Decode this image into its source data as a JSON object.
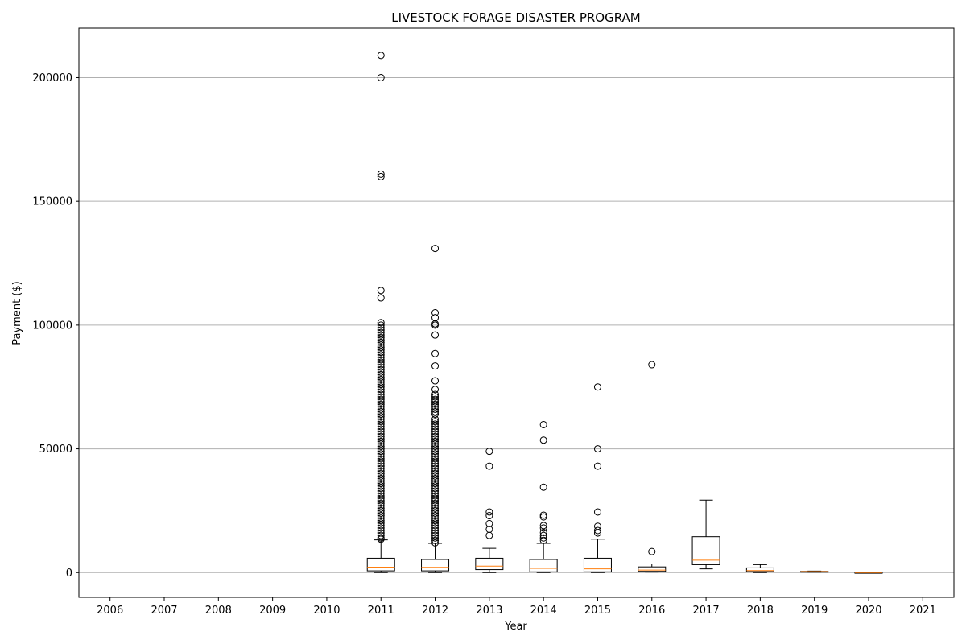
{
  "chart_data": {
    "type": "box",
    "title": "LIVESTOCK FORAGE DISASTER PROGRAM",
    "xlabel": "Year",
    "ylabel": "Payment ($)",
    "ylim": [
      -10000,
      220000
    ],
    "yticks": [
      0,
      50000,
      100000,
      150000,
      200000
    ],
    "grid": "y",
    "categories": [
      "2006",
      "2007",
      "2008",
      "2009",
      "2010",
      "2011",
      "2012",
      "2013",
      "2014",
      "2015",
      "2016",
      "2017",
      "2018",
      "2019",
      "2020",
      "2021"
    ],
    "boxes": [
      {
        "category": "2011",
        "whisker_low": 0,
        "q1": 700,
        "median": 2200,
        "q3": 5800,
        "whisker_high": 13200,
        "outliers": [
          13500,
          14000,
          15000,
          16000,
          17000,
          18000,
          19000,
          20000,
          21000,
          22000,
          23000,
          24000,
          25000,
          26000,
          27000,
          28000,
          29000,
          30000,
          31000,
          32000,
          33000,
          34000,
          35000,
          36000,
          37000,
          38000,
          39000,
          40000,
          41000,
          42000,
          43000,
          44000,
          45000,
          46000,
          47000,
          48000,
          49000,
          50000,
          51000,
          52000,
          53000,
          54000,
          55000,
          56000,
          57000,
          58000,
          59000,
          60000,
          61000,
          62000,
          63000,
          64000,
          65000,
          66000,
          67000,
          68000,
          69000,
          70000,
          71000,
          72000,
          73000,
          74000,
          75000,
          76000,
          77000,
          78000,
          79000,
          80000,
          81000,
          82000,
          83000,
          84000,
          85000,
          86000,
          87000,
          88000,
          89000,
          90000,
          91000,
          92000,
          93000,
          94000,
          95000,
          96000,
          97000,
          98000,
          99000,
          100000,
          101000,
          111000,
          114000,
          160000,
          161000,
          200000,
          209000
        ]
      },
      {
        "category": "2012",
        "whisker_low": 0,
        "q1": 700,
        "median": 2100,
        "q3": 5300,
        "whisker_high": 11800,
        "outliers": [
          12000,
          13000,
          14000,
          15000,
          16000,
          17000,
          18000,
          19000,
          20000,
          21000,
          22000,
          23000,
          24000,
          25000,
          26000,
          27000,
          28000,
          29000,
          30000,
          31000,
          32000,
          33000,
          34000,
          35000,
          36000,
          37000,
          38000,
          39000,
          40000,
          41000,
          42000,
          43000,
          44000,
          45000,
          46000,
          47000,
          48000,
          49000,
          50000,
          51000,
          52000,
          53000,
          54000,
          55000,
          56000,
          57000,
          58000,
          59000,
          60000,
          61000,
          62000,
          64000,
          65000,
          66000,
          67000,
          68000,
          69000,
          70000,
          71000,
          72000,
          74000,
          77500,
          83500,
          88500,
          96000,
          100000,
          100500,
          103000,
          105000,
          131000
        ]
      },
      {
        "category": "2013",
        "whisker_low": 0,
        "q1": 1200,
        "median": 2600,
        "q3": 5800,
        "whisker_high": 9800,
        "outliers": [
          15000,
          17500,
          19800,
          23000,
          24500,
          43000,
          49000
        ]
      },
      {
        "category": "2014",
        "whisker_low": 0,
        "q1": 300,
        "median": 1700,
        "q3": 5300,
        "whisker_high": 11800,
        "outliers": [
          13000,
          14000,
          15000,
          16200,
          18000,
          19000,
          22500,
          23200,
          34500,
          53500,
          59800
        ]
      },
      {
        "category": "2015",
        "whisker_low": 0,
        "q1": 300,
        "median": 1500,
        "q3": 5800,
        "whisker_high": 13500,
        "outliers": [
          16000,
          17000,
          18700,
          24500,
          43000,
          50000,
          75000
        ]
      },
      {
        "category": "2016",
        "whisker_low": 200,
        "q1": 500,
        "median": 1000,
        "q3": 2300,
        "whisker_high": 3500,
        "outliers": [
          8500,
          84000
        ]
      },
      {
        "category": "2017",
        "whisker_low": 1500,
        "q1": 3200,
        "median": 5000,
        "q3": 14500,
        "whisker_high": 29300,
        "outliers": []
      },
      {
        "category": "2018",
        "whisker_low": 0,
        "q1": 400,
        "median": 800,
        "q3": 1900,
        "whisker_high": 3200,
        "outliers": []
      },
      {
        "category": "2019",
        "whisker_low": 200,
        "q1": 300,
        "median": 400,
        "q3": 500,
        "whisker_high": 600,
        "outliers": []
      },
      {
        "category": "2020",
        "whisker_low": -200,
        "q1": -100,
        "median": 0,
        "q3": 50,
        "whisker_high": 100,
        "outliers": []
      }
    ],
    "colors": {
      "box": "#000000",
      "median": "#ff7f0e",
      "grid": "#b0b0b0",
      "outlier": "#000000"
    }
  }
}
